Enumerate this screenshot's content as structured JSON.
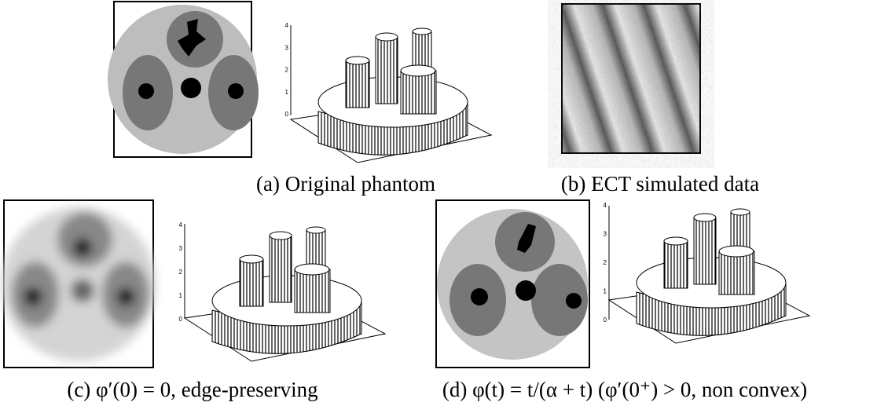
{
  "panels": [
    {
      "caption": "(a) Original phantom",
      "z_ticks": [
        "4",
        "3",
        "2",
        "1",
        "0"
      ]
    },
    {
      "caption": "(b) ECT simulated data"
    },
    {
      "caption": "(c)  φ′(0) = 0, edge-preserving",
      "z_ticks": [
        "4",
        "3",
        "2",
        "1",
        "0"
      ]
    },
    {
      "caption": "(d)  φ(t) = t/(α + t) (φ′(0⁺) > 0, non convex)",
      "z_ticks": [
        "4",
        "3",
        "2",
        "1",
        "0"
      ]
    }
  ]
}
